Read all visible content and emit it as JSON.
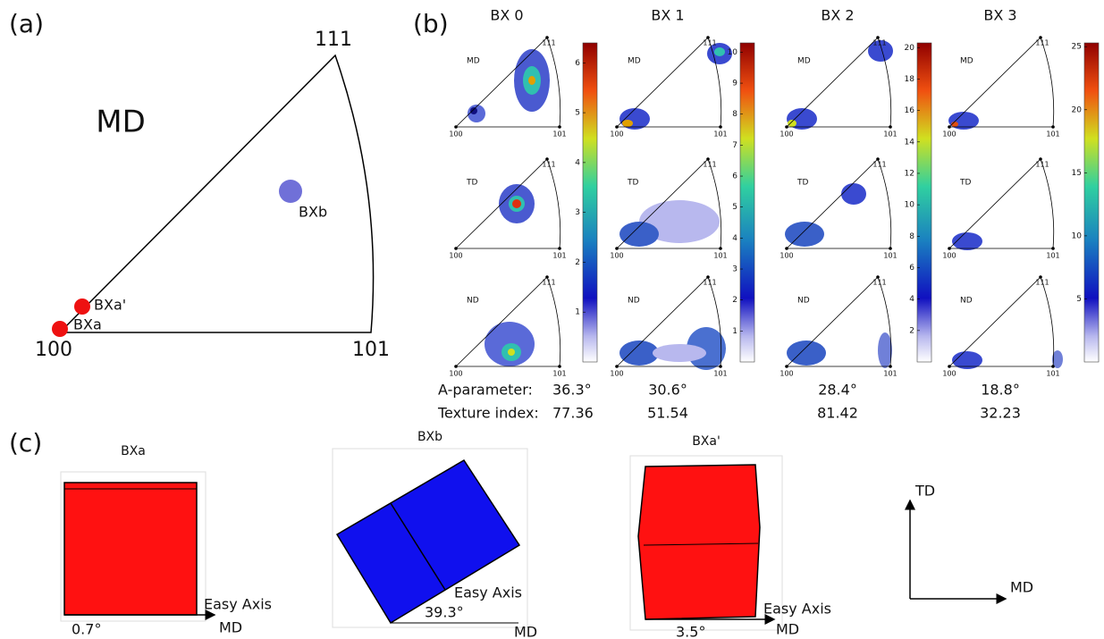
{
  "panel_a": {
    "label": "(a)",
    "direction": "MD",
    "corners": [
      "100",
      "101",
      "111"
    ],
    "points": [
      "BXa",
      "BXa'",
      "BXb"
    ]
  },
  "panel_b": {
    "label": "(b)",
    "rows": [
      "MD",
      "TD",
      "ND"
    ],
    "ipf_corners": [
      "100",
      "101",
      "111"
    ],
    "a_parameter_label": "A-parameter:",
    "texture_index_label": "Texture index:",
    "columns": [
      {
        "title": "BX 0",
        "a_parameter": "36.3°",
        "texture_index": "77.36",
        "colorbar_ticks": [
          "1",
          "2",
          "3",
          "4",
          "5",
          "6"
        ],
        "colorbar_max": 6.4
      },
      {
        "title": "BX 1",
        "a_parameter": "30.6°",
        "texture_index": "51.54",
        "colorbar_ticks": [
          "1",
          "2",
          "3",
          "4",
          "5",
          "6",
          "7",
          "8",
          "9",
          "10"
        ],
        "colorbar_max": 10.3
      },
      {
        "title": "BX 2",
        "a_parameter": "28.4°",
        "texture_index": "81.42",
        "colorbar_ticks": [
          "2",
          "4",
          "6",
          "8",
          "10",
          "12",
          "14",
          "16",
          "18",
          "20"
        ],
        "colorbar_max": 20.3
      },
      {
        "title": "BX 3",
        "a_parameter": "18.8°",
        "texture_index": "32.23",
        "colorbar_ticks": [
          "5",
          "10",
          "15",
          "20",
          "25"
        ],
        "colorbar_max": 25.3
      }
    ]
  },
  "panel_c": {
    "label": "(c)",
    "easy_axis": "Easy Axis",
    "md": "MD",
    "crystals": [
      {
        "title": "BXa",
        "angle": "0.7°"
      },
      {
        "title": "BXb",
        "angle": "39.3°"
      },
      {
        "title": "BXa'",
        "angle": "3.5°"
      }
    ],
    "axes": {
      "x": "MD",
      "y": "TD"
    }
  }
}
